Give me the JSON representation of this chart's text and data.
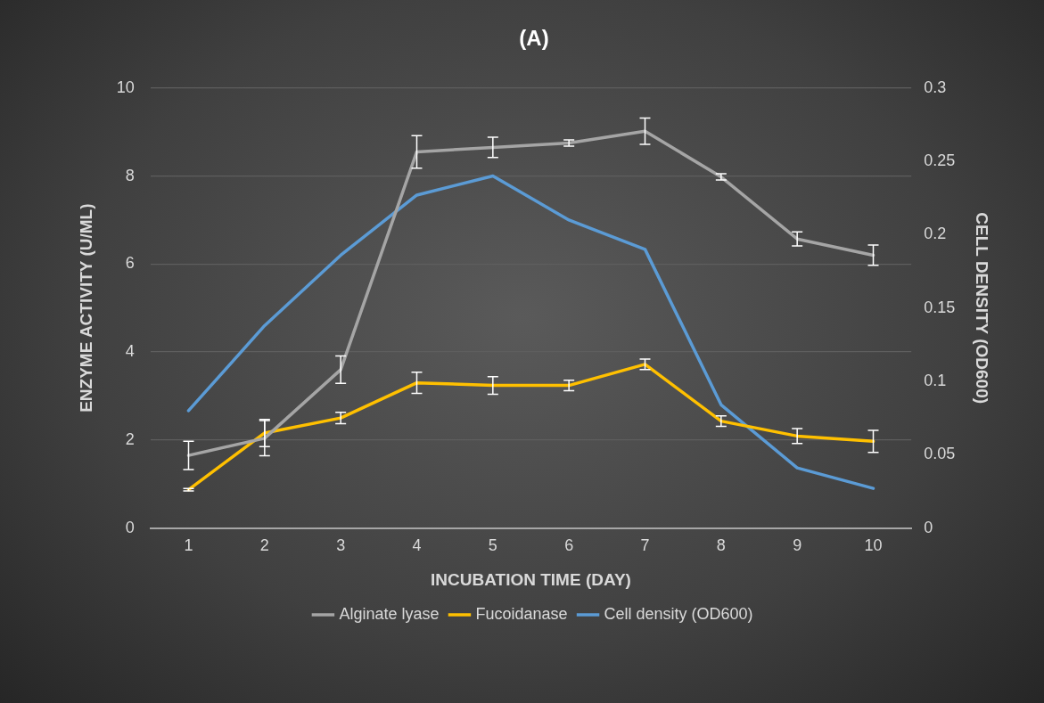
{
  "chart_data": {
    "type": "line",
    "title": "(A)",
    "xlabel": "INCUBATION TIME (DAY)",
    "ylabel": "ENZYME ACTIVITY (U/ML)",
    "y2label": "CELL DENSITY (OD600)",
    "categories": [
      "1",
      "2",
      "3",
      "4",
      "5",
      "6",
      "7",
      "8",
      "9",
      "10"
    ],
    "series": [
      {
        "name": "Alginate lyase",
        "color": "#a5a5a5",
        "values": [
          1.65,
          2.04,
          3.6,
          8.55,
          8.65,
          8.75,
          9.02,
          7.98,
          6.57,
          6.2
        ],
        "errors": [
          0.32,
          0.4,
          0.31,
          0.37,
          0.23,
          0.07,
          0.3,
          0.07,
          0.16,
          0.23
        ]
      },
      {
        "name": "Fucoidanase",
        "color": "#ffc000",
        "values": [
          0.87,
          2.16,
          2.5,
          3.3,
          3.24,
          3.24,
          3.72,
          2.43,
          2.09,
          1.97
        ],
        "errors": [
          0.03,
          0.31,
          0.13,
          0.24,
          0.2,
          0.12,
          0.12,
          0.12,
          0.17,
          0.25
        ]
      },
      {
        "name": "Cell density (OD600)",
        "color": "#5b9bd5",
        "axis": "y2",
        "values": [
          0.08,
          0.138,
          0.186,
          0.227,
          0.24,
          0.21,
          0.19,
          0.084,
          0.041,
          0.027
        ]
      }
    ],
    "ylim": [
      0,
      10
    ],
    "yticks": [
      0,
      2,
      4,
      6,
      8,
      10
    ],
    "y2lim": [
      0,
      0.3
    ],
    "y2ticks": [
      0,
      0.05,
      0.1,
      0.15,
      0.2,
      0.25,
      0.3
    ],
    "grid": "y",
    "legend": "bottom",
    "line_style": "solid"
  }
}
